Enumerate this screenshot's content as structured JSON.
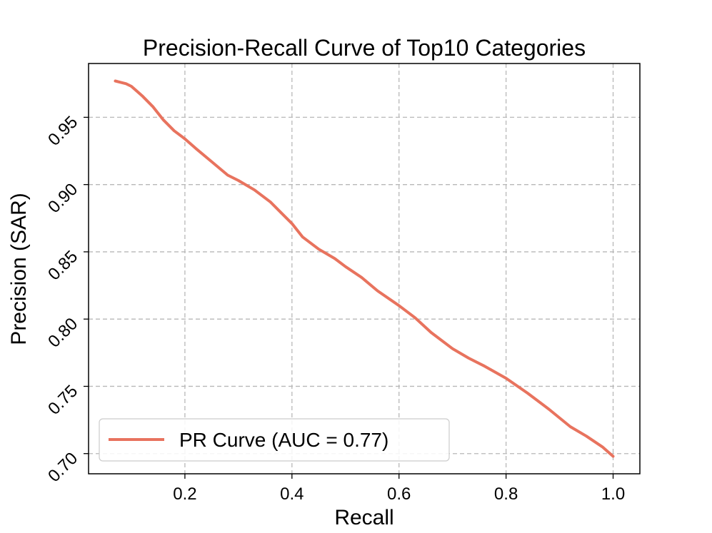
{
  "chart_data": {
    "type": "line",
    "title": "Precision-Recall Curve of Top10 Categories",
    "xlabel": "Recall",
    "ylabel": "Precision (SAR)",
    "xlim": [
      0.02,
      1.05
    ],
    "ylim": [
      0.685,
      0.99
    ],
    "xticks": [
      0.2,
      0.4,
      0.6,
      0.8,
      1.0
    ],
    "xtick_labels": [
      "0.2",
      "0.4",
      "0.6",
      "0.8",
      "1.0"
    ],
    "yticks": [
      0.7,
      0.75,
      0.8,
      0.85,
      0.9,
      0.95
    ],
    "ytick_labels": [
      "0.70",
      "0.75",
      "0.80",
      "0.85",
      "0.90",
      "0.95"
    ],
    "grid": true,
    "legend_position": "lower-left",
    "series": [
      {
        "name": "PR Curve (AUC = 0.77)",
        "color": "#e8735e",
        "x": [
          0.07,
          0.08,
          0.09,
          0.1,
          0.12,
          0.14,
          0.16,
          0.18,
          0.2,
          0.22,
          0.25,
          0.28,
          0.3,
          0.33,
          0.36,
          0.38,
          0.4,
          0.42,
          0.45,
          0.48,
          0.5,
          0.53,
          0.56,
          0.6,
          0.63,
          0.66,
          0.7,
          0.73,
          0.76,
          0.8,
          0.84,
          0.88,
          0.92,
          0.95,
          0.98,
          1.0
        ],
        "y": [
          0.977,
          0.976,
          0.975,
          0.973,
          0.966,
          0.958,
          0.948,
          0.94,
          0.934,
          0.927,
          0.917,
          0.907,
          0.903,
          0.896,
          0.887,
          0.879,
          0.871,
          0.861,
          0.852,
          0.845,
          0.839,
          0.831,
          0.821,
          0.81,
          0.801,
          0.79,
          0.778,
          0.771,
          0.765,
          0.756,
          0.745,
          0.733,
          0.72,
          0.713,
          0.705,
          0.698
        ]
      }
    ]
  }
}
